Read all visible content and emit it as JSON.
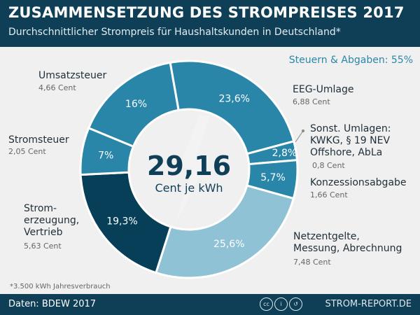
{
  "header": {
    "title": "ZUSAMMENSETZUNG DES STROMPREISES 2017",
    "subtitle": "Durchschnittlicher Strompreis für Haushaltskunden in Deutschland*"
  },
  "taxes_label": "Steuern & Abgaben: 55%",
  "chart_data": {
    "type": "pie",
    "donut": true,
    "center_value": "29,16",
    "center_unit": "Cent je kWh",
    "slices": [
      {
        "label": "EEG-Umlage",
        "value": 23.6,
        "pct_label": "23,6%",
        "cent": "6,88 Cent",
        "color": "#2986a9"
      },
      {
        "label": "Sonst. Umlagen: KWKG, § 19 NEV Offshore, AbLa",
        "value": 2.8,
        "pct_label": "2,8%",
        "cent": "0,8 Cent",
        "color": "#2986a9"
      },
      {
        "label": "Konzessionsabgabe",
        "value": 5.7,
        "pct_label": "5,7%",
        "cent": "1,66 Cent",
        "color": "#2986a9"
      },
      {
        "label": "Netzentgelte, Messung, Abrechnung",
        "value": 25.6,
        "pct_label": "25,6%",
        "cent": "7,48 Cent",
        "color": "#8fc2d5"
      },
      {
        "label": "Strom- erzeugung, Vertrieb",
        "value": 19.3,
        "pct_label": "19,3%",
        "cent": "5,63 Cent",
        "color": "#073f58"
      },
      {
        "label": "Stromsteuer",
        "value": 7,
        "pct_label": "7%",
        "cent": "2,05 Cent",
        "color": "#2986a9"
      },
      {
        "label": "Umsatzsteuer",
        "value": 16,
        "pct_label": "16%",
        "cent": "4,66 Cent",
        "color": "#2986a9"
      }
    ]
  },
  "labels": {
    "eeg": [
      "EEG-Umlage"
    ],
    "sonst": [
      "Sonst. Umlagen:",
      "KWKG, § 19 NEV",
      "Offshore, AbLa"
    ],
    "konz": [
      "Konzessionsabgabe"
    ],
    "netz": [
      "Netzentgelte,",
      "Messung, Abrechnung"
    ],
    "strom": [
      "Strom-",
      "erzeugung,",
      "Vertrieb"
    ],
    "steuer": [
      "Stromsteuer"
    ],
    "umsatz": [
      "Umsatzsteuer"
    ]
  },
  "footnote": "*3.500 kWh Jahresverbrauch",
  "footer": {
    "source": "Daten: BDEW 2017",
    "brand": "STROM-REPORT.DE",
    "license_icons": [
      "cc",
      "by",
      "sa"
    ]
  }
}
